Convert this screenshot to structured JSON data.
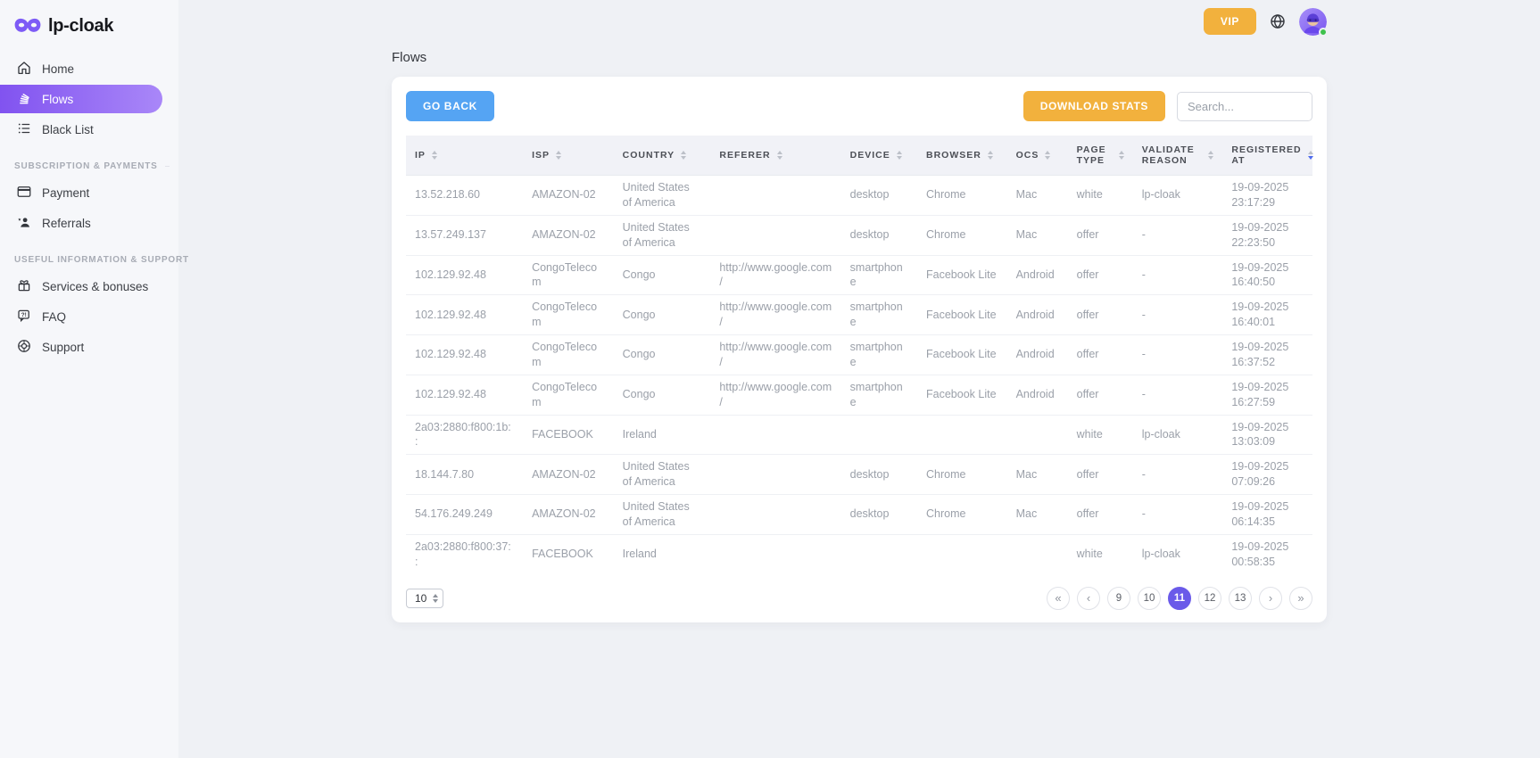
{
  "theme": {
    "bg": "#eff1f5",
    "sidebar_bg": "#f6f7fa",
    "accent_purple": "#8153f0",
    "accent_blue": "#55a4f3",
    "accent_amber": "#f2b13d",
    "accent_indigo": "#6a5ae9",
    "status_green": "#3ec24d"
  },
  "brand": {
    "name": "lp-cloak"
  },
  "topbar": {
    "vip_label": "VIP"
  },
  "sidebar": {
    "sections": [
      {
        "label": "",
        "items": [
          {
            "label": "Home",
            "icon": "home-icon",
            "active": false
          },
          {
            "label": "Flows",
            "icon": "flows-icon",
            "active": true
          },
          {
            "label": "Black List",
            "icon": "blacklist-icon",
            "active": false
          }
        ]
      },
      {
        "label": "SUBSCRIPTION & PAYMENTS",
        "items": [
          {
            "label": "Payment",
            "icon": "payment-icon",
            "active": false
          },
          {
            "label": "Referrals",
            "icon": "referrals-icon",
            "active": false
          }
        ]
      },
      {
        "label": "USEFUL INFORMATION & SUPPORT",
        "items": [
          {
            "label": "Services & bonuses",
            "icon": "gift-icon",
            "active": false
          },
          {
            "label": "FAQ",
            "icon": "faq-icon",
            "active": false
          },
          {
            "label": "Support",
            "icon": "support-icon",
            "active": false
          }
        ]
      }
    ]
  },
  "page": {
    "title": "Flows"
  },
  "toolbar": {
    "go_back_label": "GO BACK",
    "download_stats_label": "DOWNLOAD STATS",
    "search_placeholder": "Search...",
    "search_value": ""
  },
  "table": {
    "columns": [
      {
        "key": "ip",
        "label": "IP"
      },
      {
        "key": "isp",
        "label": "ISP"
      },
      {
        "key": "country",
        "label": "COUNTRY"
      },
      {
        "key": "referer",
        "label": "REFERER"
      },
      {
        "key": "device",
        "label": "DEVICE"
      },
      {
        "key": "browser",
        "label": "BROWSER"
      },
      {
        "key": "ocs",
        "label": "OCS"
      },
      {
        "key": "page_type",
        "label": "PAGE TYPE"
      },
      {
        "key": "validate_reason",
        "label": "VALIDATE REASON"
      },
      {
        "key": "registered_at",
        "label": "REGISTERED AT",
        "sorted": "desc"
      }
    ],
    "rows": [
      [
        "13.52.218.60",
        "AMAZON-02",
        "United States of America",
        "",
        "desktop",
        "Chrome",
        "Mac",
        "white",
        "lp-cloak",
        "19-09-2025 23:17:29"
      ],
      [
        "13.57.249.137",
        "AMAZON-02",
        "United States of America",
        "",
        "desktop",
        "Chrome",
        "Mac",
        "offer",
        "-",
        "19-09-2025 22:23:50"
      ],
      [
        "102.129.92.48",
        "CongoTelecom",
        "Congo",
        "http://www.google.com/",
        "smartphone",
        "Facebook Lite",
        "Android",
        "offer",
        "-",
        "19-09-2025 16:40:50"
      ],
      [
        "102.129.92.48",
        "CongoTelecom",
        "Congo",
        "http://www.google.com/",
        "smartphone",
        "Facebook Lite",
        "Android",
        "offer",
        "-",
        "19-09-2025 16:40:01"
      ],
      [
        "102.129.92.48",
        "CongoTelecom",
        "Congo",
        "http://www.google.com/",
        "smartphone",
        "Facebook Lite",
        "Android",
        "offer",
        "-",
        "19-09-2025 16:37:52"
      ],
      [
        "102.129.92.48",
        "CongoTelecom",
        "Congo",
        "http://www.google.com/",
        "smartphone",
        "Facebook Lite",
        "Android",
        "offer",
        "-",
        "19-09-2025 16:27:59"
      ],
      [
        "2a03:2880:f800:1b::",
        "FACEBOOK",
        "Ireland",
        "",
        "",
        "",
        "",
        "white",
        "lp-cloak",
        "19-09-2025 13:03:09"
      ],
      [
        "18.144.7.80",
        "AMAZON-02",
        "United States of America",
        "",
        "desktop",
        "Chrome",
        "Mac",
        "offer",
        "-",
        "19-09-2025 07:09:26"
      ],
      [
        "54.176.249.249",
        "AMAZON-02",
        "United States of America",
        "",
        "desktop",
        "Chrome",
        "Mac",
        "offer",
        "-",
        "19-09-2025 06:14:35"
      ],
      [
        "2a03:2880:f800:37::",
        "FACEBOOK",
        "Ireland",
        "",
        "",
        "",
        "",
        "white",
        "lp-cloak",
        "19-09-2025 00:58:35"
      ]
    ]
  },
  "pagination": {
    "page_size": "10",
    "first_label": "«",
    "prev_label": "‹",
    "pages": [
      "9",
      "10",
      "11",
      "12",
      "13"
    ],
    "active_page": "11",
    "next_label": "›",
    "last_label": "»"
  }
}
